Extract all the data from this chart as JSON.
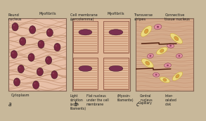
{
  "outer_bg": "#c8b89a",
  "panel_bg_a": "#e8c0a8",
  "panel_bg_b": "#e0b898",
  "panel_bg_c": "#d8b090",
  "fiber_line_a": "#c09070",
  "fiber_line_b_dark": "#b87868",
  "fiber_line_b_light": "#e8c8a8",
  "fiber_line_c": "#b87858",
  "nucleus_smooth": "#7a2840",
  "nucleus_smooth_edge": "#3a1020",
  "nucleus_cardiac_pink": "#e090a0",
  "nucleus_cardiac_edge": "#803050",
  "connective_fill": "#f0e080",
  "connective_edge": "#c8a030",
  "connective_nucleus": "#d8a040",
  "intercalated": "#4a1808",
  "border_color": "#806050",
  "text_color": "#1a1a1a",
  "label_fontsize": 3.6,
  "letter_fontsize": 5.5,
  "outer_border": "#a09080"
}
